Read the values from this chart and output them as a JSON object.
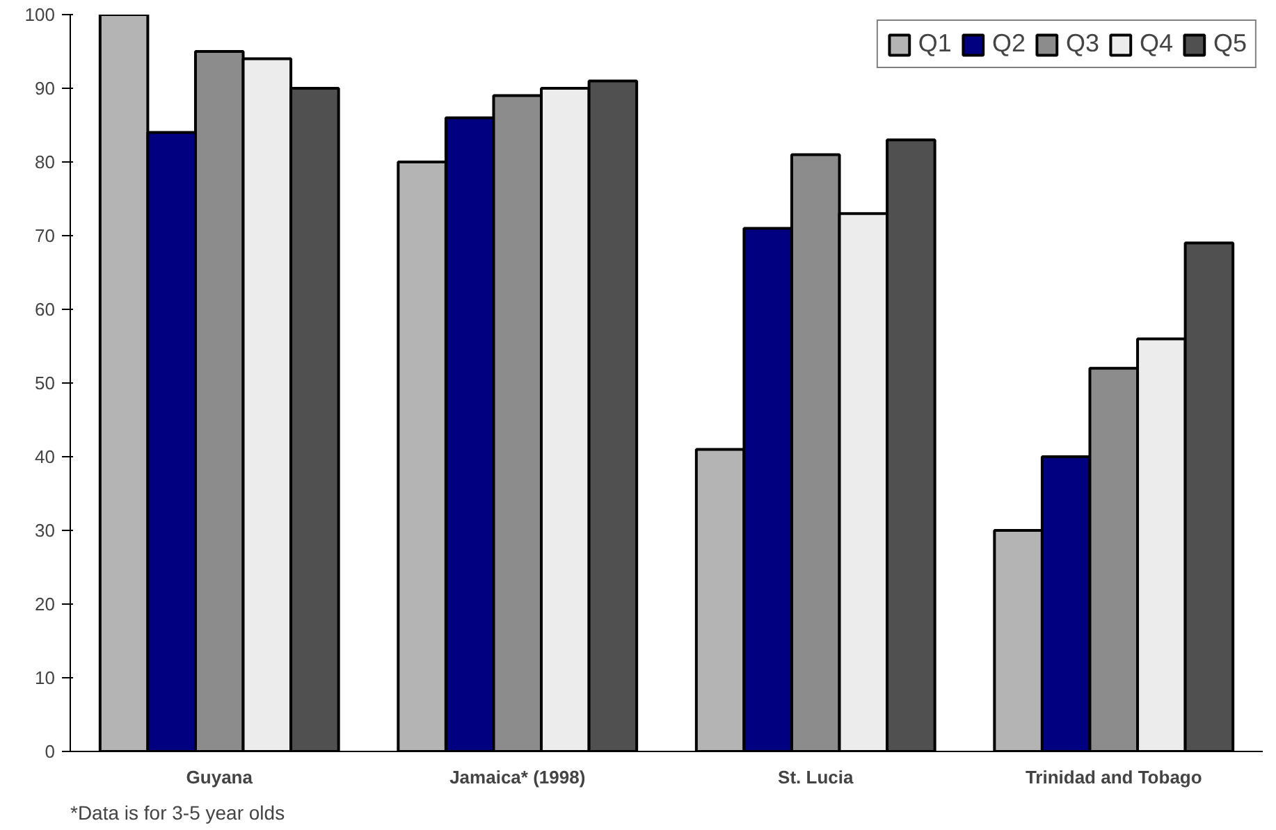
{
  "chart_data": {
    "type": "bar",
    "categories": [
      "Guyana",
      "Jamaica* (1998)",
      "St. Lucia",
      "Trinidad and Tobago"
    ],
    "series": [
      {
        "name": "Q1",
        "color": "#b4b4b4",
        "values": [
          100,
          80,
          41,
          30
        ]
      },
      {
        "name": "Q2",
        "color": "#000080",
        "values": [
          84,
          86,
          71,
          40
        ]
      },
      {
        "name": "Q3",
        "color": "#8c8c8c",
        "values": [
          95,
          89,
          81,
          52
        ]
      },
      {
        "name": "Q4",
        "color": "#ececec",
        "values": [
          94,
          90,
          73,
          56
        ]
      },
      {
        "name": "Q5",
        "color": "#505050",
        "values": [
          90,
          91,
          83,
          69
        ]
      }
    ],
    "ylim": [
      0,
      100
    ],
    "yticks": [
      0,
      10,
      20,
      30,
      40,
      50,
      60,
      70,
      80,
      90,
      100
    ],
    "grid": false,
    "legend": "top right",
    "annotations": [
      "*Data is for 3-5 year olds"
    ]
  }
}
